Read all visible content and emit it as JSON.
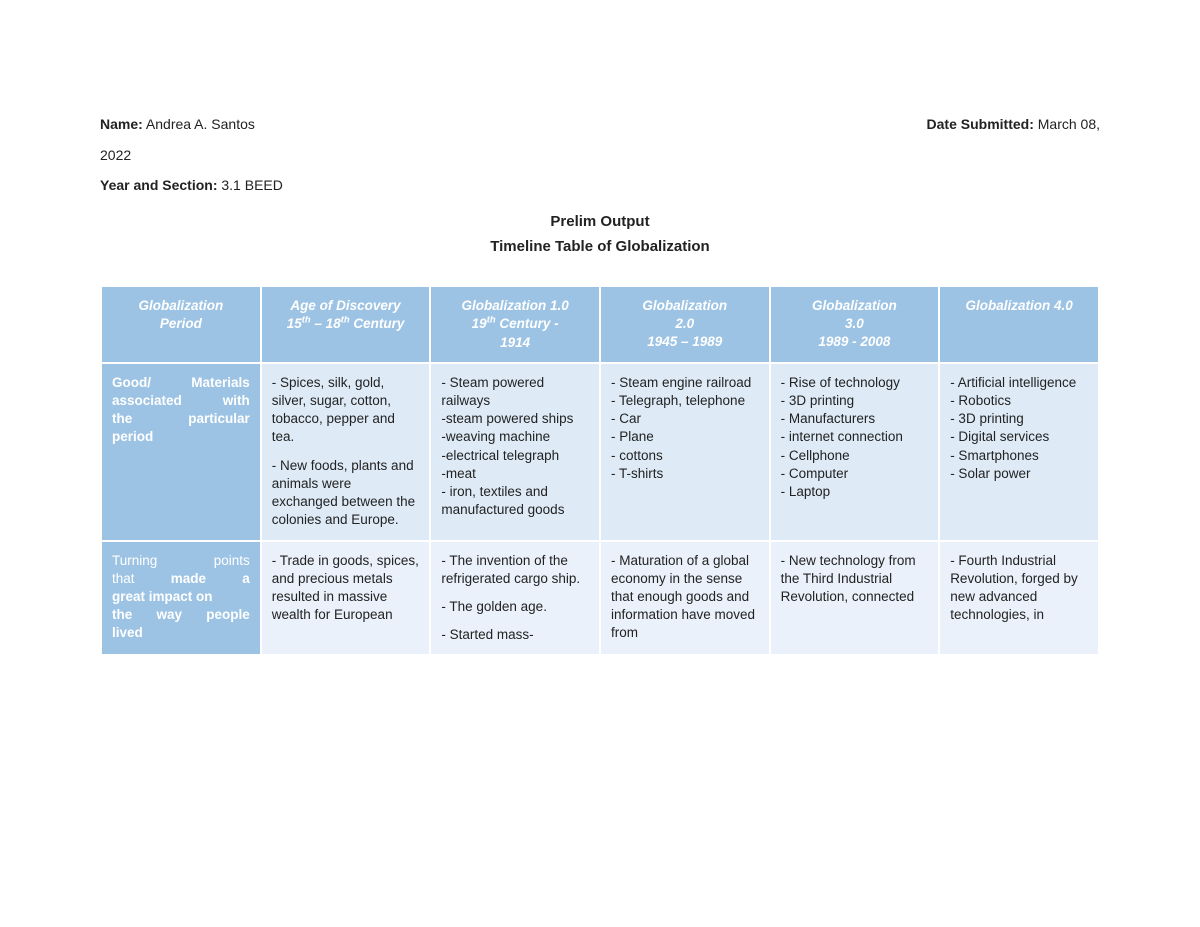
{
  "meta": {
    "name_label": "Name:",
    "name_value": "Andrea A. Santos",
    "date_label": "Date Submitted:",
    "date_value": "March 08,",
    "date_value2": "2022",
    "year_label": "Year and Section:",
    "year_value": "3.1 BEED"
  },
  "titles": {
    "line1": "Prelim Output",
    "line2": "Timeline Table of Globalization"
  },
  "table": {
    "header_bg": "#9cc3e4",
    "row1_bg": "#deebf7",
    "row2_bg": "#eaf1fa",
    "text_color": "#222222",
    "header_text_color": "#ffffff",
    "columns": [
      {
        "l1": "Globalization",
        "l2": "Period",
        "l3": ""
      },
      {
        "l1": "Age of Discovery",
        "l2_html": "15<sup>th</sup> – 18<sup>th</sup> Century",
        "l3": ""
      },
      {
        "l1": "Globalization 1.0",
        "l2_html": "19<sup>th</sup> Century -",
        "l3": "1914"
      },
      {
        "l1": "Globalization",
        "l2": "2.0",
        "l3": "1945 – 1989"
      },
      {
        "l1": "Globalization",
        "l2": "3.0",
        "l3": "1989 - 2008"
      },
      {
        "l1": "Globalization 4.0",
        "l2": "",
        "l3": ""
      }
    ],
    "rows": [
      {
        "head_lines": [
          "Good/ Materials",
          "associated with",
          "the particular",
          "period"
        ],
        "cells": [
          "- Spices, silk, gold, silver, sugar, cotton, tobacco, pepper and tea.\n\n- New foods, plants and animals were exchanged between the colonies and Europe.",
          "- Steam powered railways\n-steam powered ships\n-weaving machine\n-electrical telegraph\n-meat\n- iron, textiles and manufactured goods",
          "- Steam engine railroad\n- Telegraph, telephone\n- Car\n- Plane\n- cottons\n- T-shirts",
          "- Rise of technology\n- 3D printing\n- Manufacturers\n- internet connection\n- Cellphone\n- Computer\n- Laptop",
          "- Artificial intelligence\n- Robotics\n- 3D printing\n- Digital services\n- Smartphones\n- Solar power"
        ]
      },
      {
        "head_html": "<span style=\"display:flex;justify-content:space-between;\"><span>Turning</span><span>points</span></span><span style=\"display:flex;justify-content:space-between;\"><span>that</span><span><b>made</b></span><span><b>a</b></span></span><b>great impact on</b><br><span style=\"display:flex;justify-content:space-between;\"><b>the</b><b>way</b><b>people</b></span><b>lived</b>",
        "head_lines_plain": [
          "Turning points",
          "that made a",
          "great impact on",
          "the way people",
          "lived"
        ],
        "cells": [
          "- Trade in goods, spices, and precious metals resulted in massive wealth for European",
          "- The invention of the refrigerated cargo ship.\n\n- The golden age.\n\n- Started mass-",
          "- Maturation of a global economy in the sense that enough goods and information have moved from",
          "- New technology from the Third Industrial Revolution, connected",
          "- Fourth Industrial Revolution, forged by new advanced technologies, in"
        ]
      }
    ]
  }
}
